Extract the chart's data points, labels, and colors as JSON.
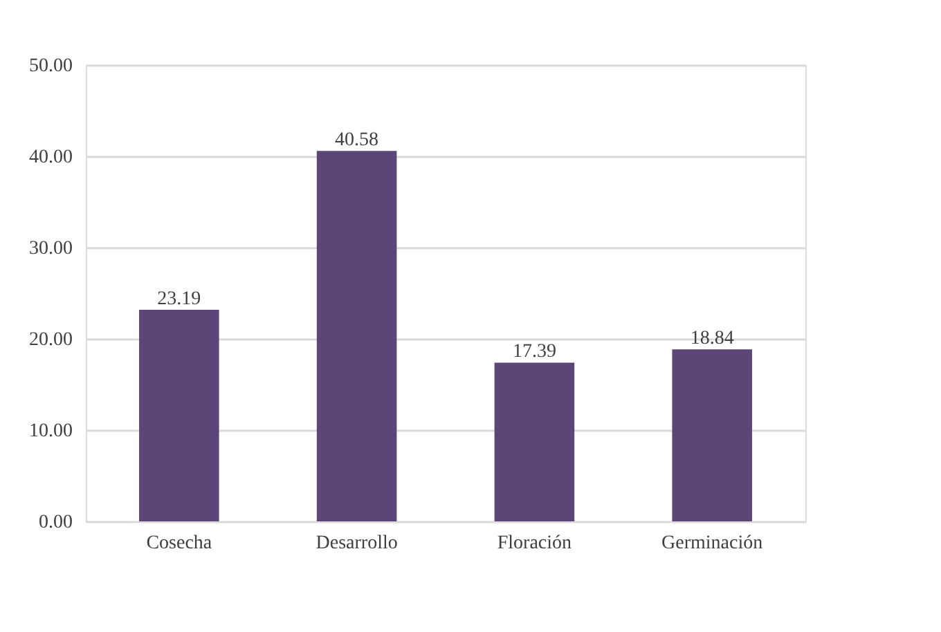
{
  "chart_data": {
    "type": "bar",
    "categories": [
      "Cosecha",
      "Desarrollo",
      "Floración",
      "Germinación"
    ],
    "values": [
      23.19,
      40.58,
      17.39,
      18.84
    ],
    "color": "#5b4677",
    "ylim": [
      0,
      50
    ],
    "yticks": [
      {
        "value": 0,
        "label": "0.00"
      },
      {
        "value": 10,
        "label": "10.00"
      },
      {
        "value": 20,
        "label": "20.00"
      },
      {
        "value": 30,
        "label": "30.00"
      },
      {
        "value": 40,
        "label": "40.00"
      },
      {
        "value": 50,
        "label": "50.00"
      }
    ],
    "grid": "y",
    "data_labels": true
  }
}
